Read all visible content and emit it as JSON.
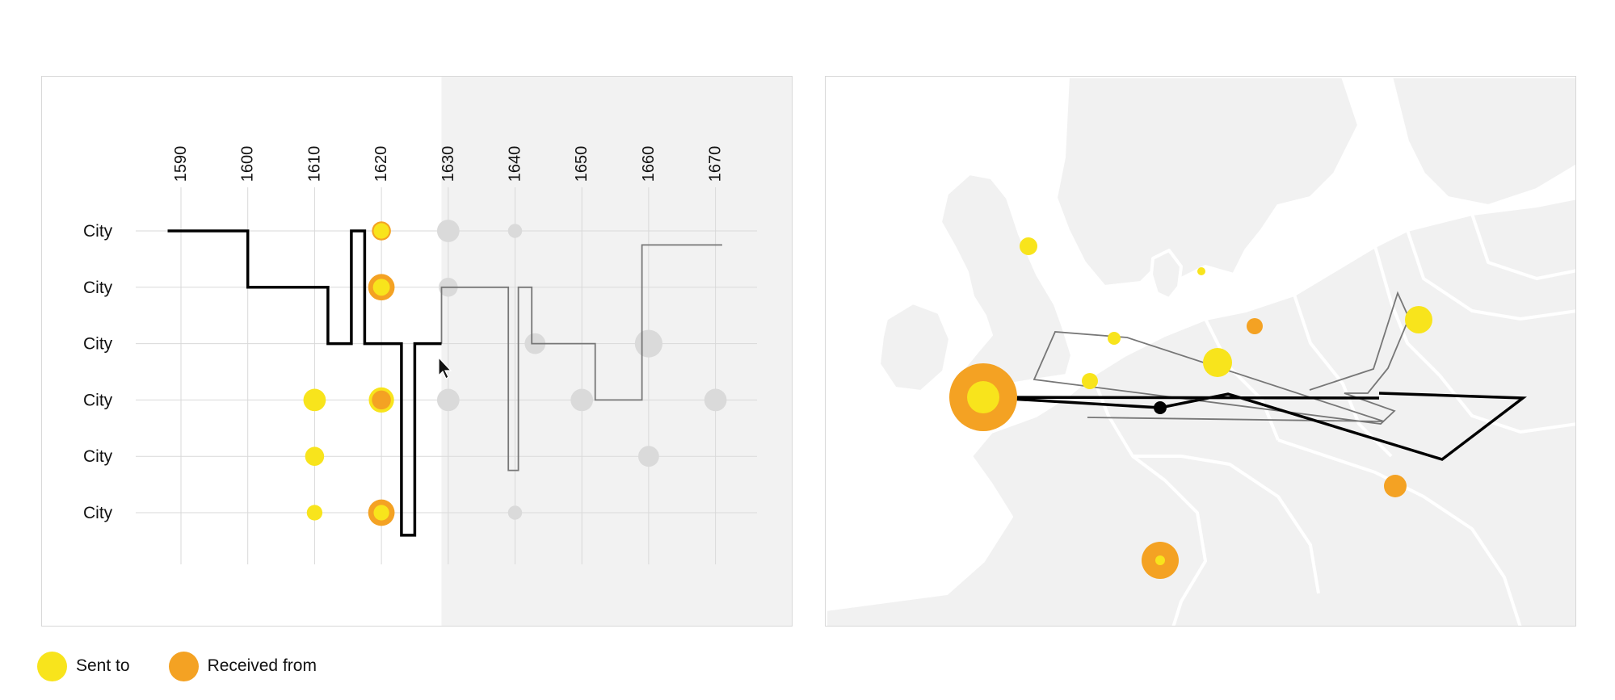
{
  "colors": {
    "sent": "#f8e41c",
    "received": "#f4a223",
    "inactive": "#dadada",
    "grid": "#d9d9d9",
    "shade": "#f2f2f2",
    "land": "#f1f1f1",
    "path_active": "#000000",
    "path_future": "#777777"
  },
  "legend": [
    {
      "label": "Sent to",
      "color": "#f8e41c"
    },
    {
      "label": "Received from",
      "color": "#f4a223"
    }
  ],
  "chart_data": {
    "type": "scatter",
    "x": [
      1590,
      1600,
      1610,
      1620,
      1630,
      1640,
      1650,
      1660,
      1670
    ],
    "categories": [
      "City",
      "City",
      "City",
      "City",
      "City",
      "City"
    ],
    "xlim": [
      1583,
      1680
    ],
    "current_year": 1629,
    "grid": true,
    "legend_position": "bottom-left",
    "series": [
      {
        "name": "Sent to",
        "points": [
          {
            "x": 1610,
            "row": 3,
            "v": 5
          },
          {
            "x": 1610,
            "row": 4,
            "v": 3
          },
          {
            "x": 1610,
            "row": 5,
            "v": 1.5
          },
          {
            "x": 1620,
            "row": 0,
            "v": 1.5
          },
          {
            "x": 1620,
            "row": 1,
            "v": 2
          },
          {
            "x": 1620,
            "row": 3,
            "v": 7
          },
          {
            "x": 1620,
            "row": 5,
            "v": 1.5
          }
        ]
      },
      {
        "name": "Received from",
        "points": [
          {
            "x": 1620,
            "row": 0,
            "v": 3
          },
          {
            "x": 1620,
            "row": 1,
            "v": 8
          },
          {
            "x": 1620,
            "row": 3,
            "v": 3
          },
          {
            "x": 1620,
            "row": 5,
            "v": 8
          }
        ]
      },
      {
        "points": [
          {
            "x": 1630,
            "row": 0,
            "v": 5
          },
          {
            "x": 1630,
            "row": 1,
            "v": 3
          },
          {
            "x": 1630,
            "row": 3,
            "v": 5
          },
          {
            "x": 1640,
            "row": 0,
            "v": 1
          },
          {
            "x": 1640,
            "row": 5,
            "v": 1
          },
          {
            "x": 1643,
            "row": 2,
            "v": 4
          },
          {
            "x": 1650,
            "row": 3,
            "v": 5
          },
          {
            "x": 1660,
            "row": 2,
            "v": 9
          },
          {
            "x": 1660,
            "row": 4,
            "v": 4
          },
          {
            "x": 1670,
            "row": 3,
            "v": 5
          }
        ]
      }
    ],
    "travel_path": {
      "past": [
        [
          1588,
          0
        ],
        [
          1600,
          0
        ],
        [
          1600,
          1
        ],
        [
          1612,
          1
        ],
        [
          1612,
          2
        ],
        [
          1615.5,
          2
        ],
        [
          1615.5,
          0
        ],
        [
          1617.5,
          0
        ],
        [
          1617.5,
          2
        ],
        [
          1623,
          2
        ],
        [
          1623,
          5.4
        ],
        [
          1625,
          5.4
        ],
        [
          1625,
          2
        ],
        [
          1629,
          2
        ]
      ],
      "future": [
        [
          1629,
          2
        ],
        [
          1629,
          1
        ],
        [
          1639,
          1
        ],
        [
          1639,
          4.25
        ],
        [
          1640.5,
          4.25
        ],
        [
          1640.5,
          1
        ],
        [
          1642.5,
          1
        ],
        [
          1642.5,
          2
        ],
        [
          1652,
          2
        ],
        [
          1652,
          3
        ],
        [
          1659,
          3
        ],
        [
          1659,
          0.25
        ],
        [
          1671,
          0.25
        ]
      ]
    }
  }
}
